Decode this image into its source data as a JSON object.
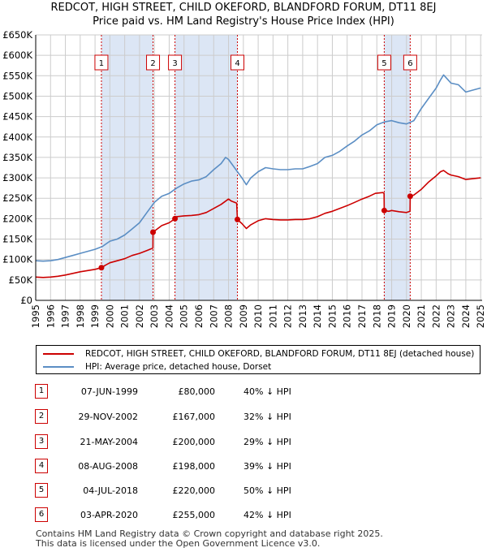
{
  "title_line1": "REDCOT, HIGH STREET, CHILD OKEFORD, BLANDFORD FORUM, DT11 8EJ",
  "title_line2": "Price paid vs. HM Land Registry's House Price Index (HPI)",
  "legend": {
    "property_label": "REDCOT, HIGH STREET, CHILD OKEFORD, BLANDFORD FORUM, DT11 8EJ (detached house)",
    "hpi_label": "HPI: Average price, detached house, Dorset"
  },
  "colors": {
    "property": "#cc0000",
    "hpi": "#5b8ec4",
    "shade": "#dce6f5",
    "marker": "#cc0000",
    "grid": "#cccccc"
  },
  "transactions": [
    {
      "num": "1",
      "date": "07-JUN-1999",
      "price": "£80,000",
      "hpi": "40% ↓ HPI"
    },
    {
      "num": "2",
      "date": "29-NOV-2002",
      "price": "£167,000",
      "hpi": "32% ↓ HPI"
    },
    {
      "num": "3",
      "date": "21-MAY-2004",
      "price": "£200,000",
      "hpi": "29% ↓ HPI"
    },
    {
      "num": "4",
      "date": "08-AUG-2008",
      "price": "£198,000",
      "hpi": "39% ↓ HPI"
    },
    {
      "num": "5",
      "date": "04-JUL-2018",
      "price": "£220,000",
      "hpi": "50% ↓ HPI"
    },
    {
      "num": "6",
      "date": "03-APR-2020",
      "price": "£255,000",
      "hpi": "42% ↓ HPI"
    }
  ],
  "footer_line1": "Contains HM Land Registry data © Crown copyright and database right 2025.",
  "footer_line2": "This data is licensed under the Open Government Licence v3.0.",
  "chart_data": {
    "type": "line",
    "title": "REDCOT, HIGH STREET, CHILD OKEFORD, BLANDFORD FORUM, DT11 8EJ",
    "subtitle": "Price paid vs. HM Land Registry's House Price Index (HPI)",
    "xlim": [
      1995,
      2025.1
    ],
    "ylim": [
      0,
      650000
    ],
    "grid": true,
    "legend_position": "below",
    "x_ticks": [
      "1995",
      "1996",
      "1997",
      "1998",
      "1999",
      "2000",
      "2001",
      "2002",
      "2003",
      "2004",
      "2005",
      "2006",
      "2007",
      "2008",
      "2009",
      "2010",
      "2011",
      "2012",
      "2013",
      "2014",
      "2015",
      "2016",
      "2017",
      "2018",
      "2019",
      "2020",
      "2021",
      "2022",
      "2023",
      "2024",
      "2025"
    ],
    "y_ticks": [
      {
        "value": 0,
        "label": "£0"
      },
      {
        "value": 50000,
        "label": "£50K"
      },
      {
        "value": 100000,
        "label": "£100K"
      },
      {
        "value": 150000,
        "label": "£150K"
      },
      {
        "value": 200000,
        "label": "£200K"
      },
      {
        "value": 250000,
        "label": "£250K"
      },
      {
        "value": 300000,
        "label": "£300K"
      },
      {
        "value": 350000,
        "label": "£350K"
      },
      {
        "value": 400000,
        "label": "£400K"
      },
      {
        "value": 450000,
        "label": "£450K"
      },
      {
        "value": 500000,
        "label": "£500K"
      },
      {
        "value": 550000,
        "label": "£550K"
      },
      {
        "value": 600000,
        "label": "£600K"
      },
      {
        "value": 650000,
        "label": "£650K"
      }
    ],
    "shaded_periods": [
      [
        1999.43,
        2002.91
      ],
      [
        2004.39,
        2008.6
      ],
      [
        2018.5,
        2020.25
      ]
    ],
    "series": [
      {
        "name": "HPI: Average price, detached house, Dorset",
        "points": [
          [
            1995,
            97000
          ],
          [
            1995.5,
            96000
          ],
          [
            1996,
            97000
          ],
          [
            1996.5,
            100000
          ],
          [
            1997,
            105000
          ],
          [
            1997.5,
            110000
          ],
          [
            1998,
            115000
          ],
          [
            1998.5,
            120000
          ],
          [
            1999,
            125000
          ],
          [
            1999.5,
            132000
          ],
          [
            2000,
            145000
          ],
          [
            2000.5,
            150000
          ],
          [
            2001,
            160000
          ],
          [
            2001.5,
            175000
          ],
          [
            2002,
            190000
          ],
          [
            2002.5,
            215000
          ],
          [
            2003,
            240000
          ],
          [
            2003.5,
            255000
          ],
          [
            2004,
            262000
          ],
          [
            2004.5,
            275000
          ],
          [
            2005,
            285000
          ],
          [
            2005.5,
            292000
          ],
          [
            2006,
            295000
          ],
          [
            2006.5,
            303000
          ],
          [
            2007,
            320000
          ],
          [
            2007.5,
            335000
          ],
          [
            2007.8,
            350000
          ],
          [
            2008,
            345000
          ],
          [
            2008.5,
            320000
          ],
          [
            2008.9,
            300000
          ],
          [
            2009.2,
            283000
          ],
          [
            2009.5,
            300000
          ],
          [
            2010,
            315000
          ],
          [
            2010.5,
            325000
          ],
          [
            2011,
            322000
          ],
          [
            2011.5,
            320000
          ],
          [
            2012,
            320000
          ],
          [
            2012.5,
            322000
          ],
          [
            2013,
            322000
          ],
          [
            2013.5,
            328000
          ],
          [
            2014,
            335000
          ],
          [
            2014.5,
            350000
          ],
          [
            2015,
            355000
          ],
          [
            2015.5,
            365000
          ],
          [
            2016,
            378000
          ],
          [
            2016.5,
            390000
          ],
          [
            2017,
            405000
          ],
          [
            2017.5,
            415000
          ],
          [
            2018,
            430000
          ],
          [
            2018.5,
            437000
          ],
          [
            2019,
            440000
          ],
          [
            2019.5,
            435000
          ],
          [
            2020,
            432000
          ],
          [
            2020.5,
            440000
          ],
          [
            2021,
            470000
          ],
          [
            2021.5,
            495000
          ],
          [
            2022,
            520000
          ],
          [
            2022.3,
            540000
          ],
          [
            2022.5,
            552000
          ],
          [
            2022.8,
            540000
          ],
          [
            2023,
            532000
          ],
          [
            2023.5,
            528000
          ],
          [
            2024,
            510000
          ],
          [
            2024.5,
            515000
          ],
          [
            2025,
            520000
          ]
        ]
      },
      {
        "name": "REDCOT, HIGH STREET, CHILD OKEFORD, BLANDFORD FORUM, DT11 8EJ (detached house)",
        "points": [
          [
            1995,
            57000
          ],
          [
            1995.5,
            56000
          ],
          [
            1996,
            57000
          ],
          [
            1996.5,
            59000
          ],
          [
            1997,
            62000
          ],
          [
            1997.5,
            66000
          ],
          [
            1998,
            70000
          ],
          [
            1998.5,
            73000
          ],
          [
            1999,
            76000
          ],
          [
            1999.43,
            80000
          ],
          [
            1999.7,
            86000
          ],
          [
            2000,
            92000
          ],
          [
            2000.5,
            97000
          ],
          [
            2001,
            102000
          ],
          [
            2001.5,
            110000
          ],
          [
            2002,
            115000
          ],
          [
            2002.5,
            122000
          ],
          [
            2002.9,
            128000
          ],
          [
            2002.91,
            167000
          ],
          [
            2003.2,
            175000
          ],
          [
            2003.5,
            183000
          ],
          [
            2004,
            190000
          ],
          [
            2004.39,
            200000
          ],
          [
            2004.5,
            205000
          ],
          [
            2005,
            207000
          ],
          [
            2005.5,
            208000
          ],
          [
            2006,
            210000
          ],
          [
            2006.5,
            215000
          ],
          [
            2007,
            225000
          ],
          [
            2007.5,
            235000
          ],
          [
            2008,
            248000
          ],
          [
            2008.2,
            243000
          ],
          [
            2008.55,
            238000
          ],
          [
            2008.6,
            198000
          ],
          [
            2008.9,
            188000
          ],
          [
            2009.2,
            176000
          ],
          [
            2009.5,
            185000
          ],
          [
            2010,
            195000
          ],
          [
            2010.5,
            200000
          ],
          [
            2011,
            198000
          ],
          [
            2011.5,
            197000
          ],
          [
            2012,
            197000
          ],
          [
            2012.5,
            198000
          ],
          [
            2013,
            198000
          ],
          [
            2013.5,
            200000
          ],
          [
            2014,
            205000
          ],
          [
            2014.5,
            213000
          ],
          [
            2015,
            218000
          ],
          [
            2015.5,
            225000
          ],
          [
            2016,
            232000
          ],
          [
            2016.5,
            240000
          ],
          [
            2017,
            248000
          ],
          [
            2017.5,
            255000
          ],
          [
            2017.9,
            262000
          ],
          [
            2018.4,
            264000
          ],
          [
            2018.49,
            262000
          ],
          [
            2018.5,
            220000
          ],
          [
            2018.8,
            218000
          ],
          [
            2019,
            220000
          ],
          [
            2019.5,
            217000
          ],
          [
            2020,
            215000
          ],
          [
            2020.24,
            218000
          ],
          [
            2020.25,
            255000
          ],
          [
            2020.5,
            258000
          ],
          [
            2021,
            272000
          ],
          [
            2021.5,
            290000
          ],
          [
            2022,
            305000
          ],
          [
            2022.3,
            315000
          ],
          [
            2022.5,
            318000
          ],
          [
            2022.8,
            310000
          ],
          [
            2023,
            307000
          ],
          [
            2023.5,
            303000
          ],
          [
            2024,
            296000
          ],
          [
            2024.5,
            298000
          ],
          [
            2025,
            300000
          ]
        ]
      }
    ],
    "sales": [
      {
        "label": "1",
        "x": 1999.43,
        "y": 80000
      },
      {
        "label": "2",
        "x": 2002.91,
        "y": 167000
      },
      {
        "label": "3",
        "x": 2004.39,
        "y": 200000
      },
      {
        "label": "4",
        "x": 2008.6,
        "y": 198000
      },
      {
        "label": "5",
        "x": 2018.5,
        "y": 220000
      },
      {
        "label": "6",
        "x": 2020.25,
        "y": 255000
      }
    ]
  }
}
